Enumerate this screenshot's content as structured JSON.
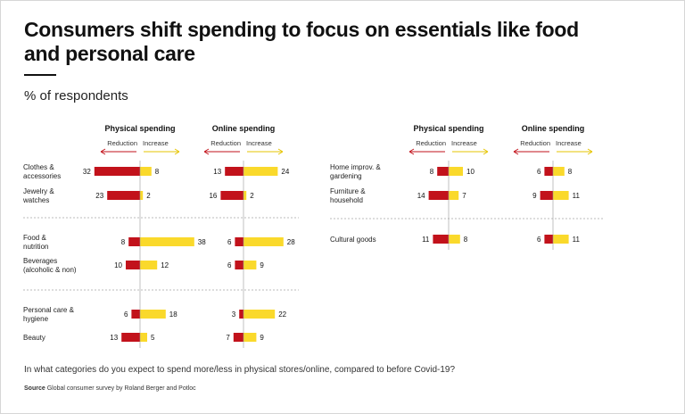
{
  "title": "Consumers shift spending to focus on essentials like food and personal care",
  "subtitle": "% of respondents",
  "question": "In what categories do you expect to spend more/less in physical stores/online, compared to before Covid-19?",
  "source_label": "Source",
  "source_text": "Global consumer survey by Roland Berger and Potloc",
  "colors": {
    "reduction": "#c2121b",
    "increase": "#fad92b",
    "axis": "#999999",
    "divider": "#bbbbbb"
  },
  "chart_data": {
    "type": "bar",
    "title": "Consumers shift spending to focus on essentials like food and personal care",
    "subtitle": "% of respondents",
    "column_headers": [
      "Physical spending",
      "Online spending"
    ],
    "direction_labels": [
      "Reduction",
      "Increase"
    ],
    "series": [
      {
        "name": "Reduction",
        "color": "#c2121b"
      },
      {
        "name": "Increase",
        "color": "#fad92b"
      }
    ],
    "panels": [
      {
        "groups": [
          {
            "rows": [
              {
                "category": [
                  "Clothes &",
                  "accessories"
                ],
                "physical": {
                  "reduction": 32,
                  "increase": 8
                },
                "online": {
                  "reduction": 13,
                  "increase": 24
                }
              },
              {
                "category": [
                  "Jewelry &",
                  "watches"
                ],
                "physical": {
                  "reduction": 23,
                  "increase": 2
                },
                "online": {
                  "reduction": 16,
                  "increase": 2
                }
              }
            ]
          },
          {
            "rows": [
              {
                "category": [
                  "Food &",
                  "nutrition"
                ],
                "physical": {
                  "reduction": 8,
                  "increase": 38
                },
                "online": {
                  "reduction": 6,
                  "increase": 28
                }
              },
              {
                "category": [
                  "Beverages",
                  "(alcoholic & non)"
                ],
                "physical": {
                  "reduction": 10,
                  "increase": 12
                },
                "online": {
                  "reduction": 6,
                  "increase": 9
                }
              }
            ]
          },
          {
            "rows": [
              {
                "category": [
                  "Personal care &",
                  "hygiene"
                ],
                "physical": {
                  "reduction": 6,
                  "increase": 18
                },
                "online": {
                  "reduction": 3,
                  "increase": 22
                }
              },
              {
                "category": [
                  "Beauty"
                ],
                "physical": {
                  "reduction": 13,
                  "increase": 5
                },
                "online": {
                  "reduction": 7,
                  "increase": 9
                }
              }
            ]
          }
        ]
      },
      {
        "groups": [
          {
            "rows": [
              {
                "category": [
                  "Home improv. &",
                  "gardening"
                ],
                "physical": {
                  "reduction": 8,
                  "increase": 10
                },
                "online": {
                  "reduction": 6,
                  "increase": 8
                }
              },
              {
                "category": [
                  "Furniture &",
                  "household"
                ],
                "physical": {
                  "reduction": 14,
                  "increase": 7
                },
                "online": {
                  "reduction": 9,
                  "increase": 11
                }
              }
            ]
          },
          {
            "rows": [
              {
                "category": [
                  "Cultural goods"
                ],
                "physical": {
                  "reduction": 11,
                  "increase": 8
                },
                "online": {
                  "reduction": 6,
                  "increase": 11
                }
              }
            ]
          }
        ]
      }
    ]
  }
}
